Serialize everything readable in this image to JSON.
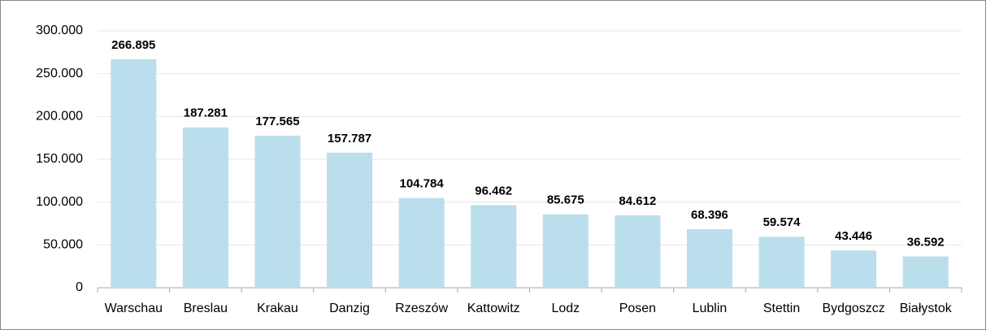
{
  "chart_data": {
    "type": "bar",
    "categories": [
      "Warschau",
      "Breslau",
      "Krakau",
      "Danzig",
      "Rzeszów",
      "Kattowitz",
      "Lodz",
      "Posen",
      "Lublin",
      "Stettin",
      "Bydgoszcz",
      "Białystok"
    ],
    "values": [
      266895,
      187281,
      177565,
      157787,
      104784,
      96462,
      85675,
      84612,
      68396,
      59574,
      43446,
      36592
    ],
    "value_labels": [
      "266.895",
      "187.281",
      "177.565",
      "157.787",
      "104.784",
      "96.462",
      "85.675",
      "84.612",
      "68.396",
      "59.574",
      "43.446",
      "36.592"
    ],
    "color": "#badeeb",
    "ylim": [
      0,
      300000
    ],
    "yticks": [
      0,
      {
        "value": 50000,
        "label": "50.000"
      },
      {
        "value": 100000,
        "label": "100.000"
      },
      {
        "value": 150000,
        "label": "150.000"
      },
      {
        "value": 200000,
        "label": "200.000"
      },
      {
        "value": 250000,
        "label": "250.000"
      },
      {
        "value": 300000,
        "label": "300.000"
      }
    ],
    "grid": true
  }
}
